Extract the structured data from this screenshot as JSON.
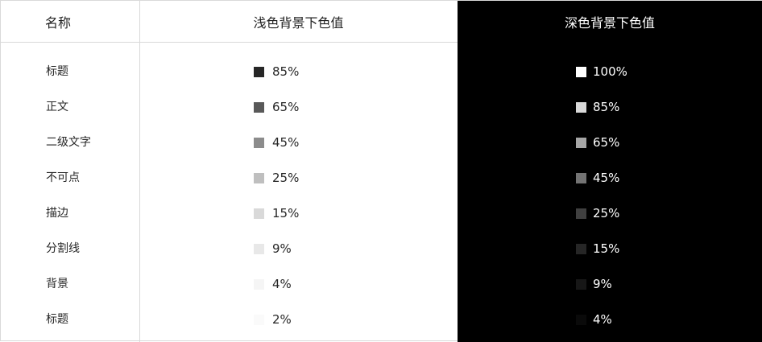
{
  "header": {
    "name": "名称",
    "light": "浅色背景下色值",
    "dark": "深色背景下色值"
  },
  "rows": [
    {
      "name": "标题",
      "light": "85%",
      "dark": "100%",
      "light_color": "#262626",
      "dark_color": "#ffffff"
    },
    {
      "name": "正文",
      "light": "65%",
      "dark": "85%",
      "light_color": "#595959",
      "dark_color": "#d9d9d9"
    },
    {
      "name": "二级文字",
      "light": "45%",
      "dark": "65%",
      "light_color": "#8c8c8c",
      "dark_color": "#a6a6a6"
    },
    {
      "name": "不可点",
      "light": "25%",
      "dark": "45%",
      "light_color": "#bfbfbf",
      "dark_color": "#737373"
    },
    {
      "name": "描边",
      "light": "15%",
      "dark": "25%",
      "light_color": "#d9d9d9",
      "dark_color": "#404040"
    },
    {
      "name": "分割线",
      "light": "9%",
      "dark": "15%",
      "light_color": "#e8e8e8",
      "dark_color": "#262626"
    },
    {
      "name": "背景",
      "light": "4%",
      "dark": "9%",
      "light_color": "#f5f5f5",
      "dark_color": "#171717"
    },
    {
      "name": "标题",
      "light": "2%",
      "dark": "4%",
      "light_color": "#fafafa",
      "dark_color": "#0a0a0a"
    }
  ]
}
